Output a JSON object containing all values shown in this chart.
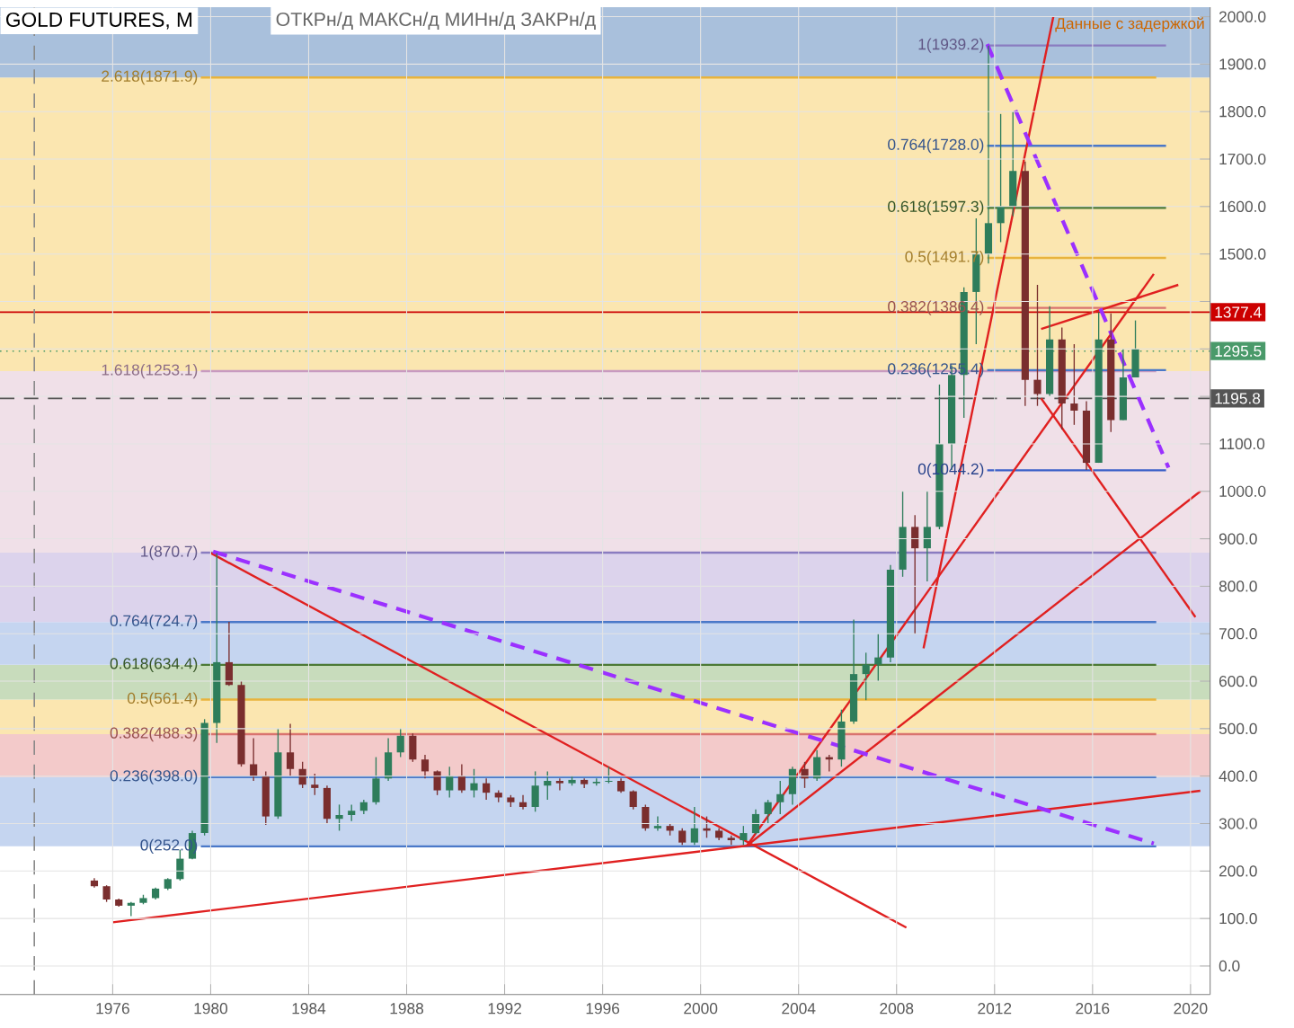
{
  "chart_data": {
    "type": "candlestick",
    "title": "GOLD FUTURES, M",
    "subtitle": "ОТКРн/д МАКСн/д МИНн/д ЗАКРн/д",
    "annotations": [
      "Данные с задержкой"
    ],
    "x": [
      1975.25,
      1975.75,
      1976.25,
      1976.75,
      1977.25,
      1977.75,
      1978.25,
      1978.75,
      1979.25,
      1979.75,
      1980.25,
      1980.75,
      1981.25,
      1981.75,
      1982.25,
      1982.75,
      1983.25,
      1983.75,
      1984.25,
      1984.75,
      1985.25,
      1985.75,
      1986.25,
      1986.75,
      1987.25,
      1987.75,
      1988.25,
      1988.75,
      1989.25,
      1989.75,
      1990.25,
      1990.75,
      1991.25,
      1991.75,
      1992.25,
      1992.75,
      1993.25,
      1993.75,
      1994.25,
      1994.75,
      1995.25,
      1995.75,
      1996.25,
      1996.75,
      1997.25,
      1997.75,
      1998.25,
      1998.75,
      1999.25,
      1999.75,
      2000.25,
      2000.75,
      2001.25,
      2001.75,
      2002.25,
      2002.75,
      2003.25,
      2003.75,
      2004.25,
      2004.75,
      2005.25,
      2005.75,
      2006.25,
      2006.75,
      2007.25,
      2007.75,
      2008.25,
      2008.75,
      2009.25,
      2009.75,
      2010.25,
      2010.75,
      2011.25,
      2011.75,
      2012.25,
      2012.75,
      2013.25,
      2013.75,
      2014.25,
      2014.75,
      2015.25,
      2015.75,
      2016.25,
      2016.75,
      2017.25,
      2017.75
    ],
    "ohlc": [
      [
        180,
        185,
        165,
        168
      ],
      [
        168,
        170,
        135,
        140
      ],
      [
        140,
        142,
        125,
        127
      ],
      [
        127,
        135,
        105,
        133
      ],
      [
        133,
        150,
        130,
        143
      ],
      [
        143,
        165,
        140,
        163
      ],
      [
        163,
        185,
        160,
        183
      ],
      [
        183,
        245,
        180,
        226
      ],
      [
        226,
        285,
        225,
        280
      ],
      [
        280,
        520,
        275,
        512
      ],
      [
        512,
        870,
        470,
        640
      ],
      [
        640,
        725,
        590,
        592
      ],
      [
        592,
        600,
        420,
        425
      ],
      [
        425,
        480,
        390,
        400
      ],
      [
        400,
        410,
        297,
        315
      ],
      [
        315,
        500,
        310,
        450
      ],
      [
        450,
        510,
        400,
        415
      ],
      [
        415,
        430,
        375,
        382
      ],
      [
        382,
        405,
        360,
        375
      ],
      [
        375,
        380,
        300,
        310
      ],
      [
        310,
        340,
        285,
        318
      ],
      [
        318,
        340,
        305,
        327
      ],
      [
        327,
        350,
        320,
        345
      ],
      [
        345,
        440,
        340,
        395
      ],
      [
        395,
        480,
        390,
        450
      ],
      [
        450,
        500,
        440,
        485
      ],
      [
        485,
        490,
        430,
        435
      ],
      [
        435,
        445,
        395,
        410
      ],
      [
        410,
        412,
        360,
        370
      ],
      [
        370,
        420,
        355,
        400
      ],
      [
        400,
        425,
        365,
        370
      ],
      [
        370,
        415,
        355,
        385
      ],
      [
        385,
        395,
        350,
        365
      ],
      [
        365,
        370,
        345,
        355
      ],
      [
        355,
        360,
        335,
        345
      ],
      [
        345,
        360,
        330,
        335
      ],
      [
        335,
        410,
        325,
        380
      ],
      [
        380,
        410,
        350,
        390
      ],
      [
        390,
        395,
        370,
        385
      ],
      [
        385,
        400,
        380,
        392
      ],
      [
        392,
        395,
        375,
        383
      ],
      [
        385,
        395,
        380,
        388
      ],
      [
        388,
        420,
        385,
        390
      ],
      [
        390,
        395,
        365,
        368
      ],
      [
        368,
        370,
        330,
        335
      ],
      [
        335,
        340,
        285,
        290
      ],
      [
        290,
        315,
        285,
        295
      ],
      [
        295,
        300,
        275,
        285
      ],
      [
        285,
        290,
        255,
        260
      ],
      [
        260,
        335,
        255,
        290
      ],
      [
        290,
        315,
        270,
        285
      ],
      [
        285,
        290,
        265,
        270
      ],
      [
        270,
        275,
        255,
        265
      ],
      [
        265,
        295,
        255,
        280
      ],
      [
        280,
        330,
        278,
        320
      ],
      [
        320,
        350,
        300,
        345
      ],
      [
        345,
        390,
        320,
        362
      ],
      [
        362,
        420,
        340,
        415
      ],
      [
        415,
        430,
        375,
        395
      ],
      [
        395,
        455,
        390,
        440
      ],
      [
        440,
        445,
        410,
        435
      ],
      [
        435,
        540,
        420,
        515
      ],
      [
        515,
        730,
        510,
        615
      ],
      [
        615,
        660,
        560,
        635
      ],
      [
        635,
        700,
        600,
        650
      ],
      [
        650,
        845,
        640,
        835
      ],
      [
        835,
        1000,
        820,
        925
      ],
      [
        925,
        950,
        700,
        880
      ],
      [
        880,
        1000,
        810,
        925
      ],
      [
        925,
        1225,
        920,
        1100
      ],
      [
        1100,
        1265,
        1045,
        1245
      ],
      [
        1245,
        1430,
        1155,
        1420
      ],
      [
        1420,
        1575,
        1310,
        1500
      ],
      [
        1500,
        1939,
        1480,
        1565
      ],
      [
        1565,
        1795,
        1525,
        1600
      ],
      [
        1600,
        1800,
        1580,
        1675
      ],
      [
        1675,
        1695,
        1180,
        1235
      ],
      [
        1235,
        1435,
        1180,
        1205
      ],
      [
        1205,
        1390,
        1200,
        1320
      ],
      [
        1320,
        1345,
        1130,
        1185
      ],
      [
        1185,
        1310,
        1140,
        1170
      ],
      [
        1170,
        1190,
        1045,
        1060
      ],
      [
        1060,
        1377,
        1060,
        1320
      ],
      [
        1320,
        1375,
        1125,
        1150
      ],
      [
        1150,
        1300,
        1150,
        1240
      ],
      [
        1240,
        1360,
        1240,
        1300
      ]
    ],
    "series": [
      {
        "type": "line",
        "name": "0(252.0)",
        "color": "#4a78c8",
        "x": [
          1979.6,
          2018.6
        ],
        "values": [
          252.0,
          252.0
        ]
      },
      {
        "type": "line",
        "name": "0.236(398.0)",
        "color": "#4a78c8",
        "x": [
          1979.6,
          2018.6
        ],
        "values": [
          398.0,
          398.0
        ]
      },
      {
        "type": "line",
        "name": "0.382(488.3)",
        "color": "#d9736f",
        "x": [
          1979.6,
          2018.6
        ],
        "values": [
          488.3,
          488.3
        ]
      },
      {
        "type": "line",
        "name": "0.5(561.4)",
        "color": "#e8b33d",
        "x": [
          1979.6,
          2018.6
        ],
        "values": [
          561.4,
          561.4
        ]
      },
      {
        "type": "line",
        "name": "0.618(634.4)",
        "color": "#4c7a36",
        "x": [
          1979.6,
          2018.6
        ],
        "values": [
          634.4,
          634.4
        ]
      },
      {
        "type": "line",
        "name": "0.764(724.7)",
        "color": "#4a78c8",
        "x": [
          1979.6,
          2018.6
        ],
        "values": [
          724.7,
          724.7
        ]
      },
      {
        "type": "line",
        "name": "1(870.7)",
        "color": "#8a7cc0",
        "x": [
          1979.6,
          2018.6
        ],
        "values": [
          870.7,
          870.7
        ]
      },
      {
        "type": "line",
        "name": "1.618(1253.1)",
        "color": "#c89ac0",
        "x": [
          1979.6,
          2018.6
        ],
        "values": [
          1253.1,
          1253.1
        ]
      },
      {
        "type": "line",
        "name": "2.618(1871.9)",
        "color": "#e8b33d",
        "x": [
          1979.6,
          2018.6
        ],
        "values": [
          1871.9,
          1871.9
        ]
      },
      {
        "type": "line",
        "name": "0(1044.2)",
        "color": "#3a5fc8",
        "x": [
          2011.7,
          2019.0
        ],
        "values": [
          1044.2,
          1044.2
        ]
      },
      {
        "type": "line",
        "name": "0.236(1255.4)",
        "color": "#4a78c8",
        "x": [
          2011.7,
          2019.0
        ],
        "values": [
          1255.4,
          1255.4
        ]
      },
      {
        "type": "line",
        "name": "0.382(1386.4)",
        "color": "#d9736f",
        "x": [
          2011.7,
          2019.0
        ],
        "values": [
          1386.4,
          1386.4
        ]
      },
      {
        "type": "line",
        "name": "0.5(1491.7)",
        "color": "#e8b33d",
        "x": [
          2011.7,
          2019.0
        ],
        "values": [
          1491.7,
          1491.7
        ]
      },
      {
        "type": "line",
        "name": "0.618(1597.3)",
        "color": "#4c7a36",
        "x": [
          2011.7,
          2019.0
        ],
        "values": [
          1597.3,
          1597.3
        ]
      },
      {
        "type": "line",
        "name": "0.764(1728.0)",
        "color": "#4a78c8",
        "x": [
          2011.7,
          2019.0
        ],
        "values": [
          1728.0,
          1728.0
        ]
      },
      {
        "type": "line",
        "name": "1(1939.2)",
        "color": "#8a7cc0",
        "x": [
          2011.7,
          2019.0
        ],
        "values": [
          1939.2,
          1939.2
        ]
      },
      {
        "type": "line",
        "color": "#e02020",
        "x": [
          1976.0,
          2020.4
        ],
        "values": [
          92,
          369
        ]
      },
      {
        "type": "line",
        "color": "#e02020",
        "x": [
          2001.9,
          2020.4
        ],
        "values": [
          254,
          1000
        ]
      },
      {
        "type": "line",
        "color": "#e02020",
        "x": [
          1980.0,
          2008.4
        ],
        "values": [
          870,
          81
        ]
      },
      {
        "type": "line",
        "color": "#e02020",
        "x": [
          2001.9,
          2018.5
        ],
        "values": [
          254,
          1458
        ]
      },
      {
        "type": "line",
        "color": "#e02020",
        "x": [
          2009.1,
          2014.4
        ],
        "values": [
          669,
          2000
        ]
      },
      {
        "type": "line",
        "color": "#e02020",
        "x": [
          2013.9,
          2020.2
        ],
        "values": [
          1196,
          735
        ]
      },
      {
        "type": "line",
        "color": "#e02020",
        "x": [
          2013.9,
          2019.5
        ],
        "values": [
          1342,
          1435
        ]
      },
      {
        "type": "line",
        "color": "#9b30ff",
        "line_style": "dashed",
        "x": [
          1980.1,
          2018.5
        ],
        "values": [
          873,
          258
        ]
      },
      {
        "type": "line",
        "color": "#9b30ff",
        "line_style": "dashed",
        "x": [
          2011.7,
          2019.1
        ],
        "values": [
          1942,
          1050
        ]
      }
    ],
    "bands": [
      {
        "axis": "y",
        "from": 252.0,
        "to": 398.0,
        "color": "#c5d5f0"
      },
      {
        "axis": "y",
        "from": 398.0,
        "to": 488.3,
        "color": "#f3caca"
      },
      {
        "axis": "y",
        "from": 488.3,
        "to": 561.4,
        "color": "#fbe6b0"
      },
      {
        "axis": "y",
        "from": 561.4,
        "to": 634.4,
        "color": "#c8dcbc"
      },
      {
        "axis": "y",
        "from": 634.4,
        "to": 724.7,
        "color": "#c5d5f0"
      },
      {
        "axis": "y",
        "from": 724.7,
        "to": 870.7,
        "color": "#dcd3ec"
      },
      {
        "axis": "y",
        "from": 870.7,
        "to": 1253.1,
        "color": "#f0e0e8"
      },
      {
        "axis": "y",
        "from": 1253.1,
        "to": 1871.9,
        "color": "#fbe6b0"
      },
      {
        "axis": "y",
        "from": 1871.9,
        "to": 2020,
        "color": "#a9c0dc"
      }
    ],
    "ref_lines": [
      {
        "axis": "y",
        "value": 1377.4,
        "label": "1377.4",
        "color": "#cc0000"
      },
      {
        "axis": "y",
        "value": 1295.5,
        "label": "1295.5",
        "color": "#4a9a6a",
        "line_style": "dotted"
      },
      {
        "axis": "y",
        "value": 1195.8,
        "label": "1195.8",
        "color": "#555555",
        "line_style": "dashed"
      },
      {
        "axis": "x",
        "value": 1972.8,
        "color": "#888888",
        "line_style": "dashed"
      }
    ],
    "xlim": [
      1971.4,
      2020.8
    ],
    "ylim": [
      -60,
      2020
    ],
    "xticks": [
      1976,
      1980,
      1984,
      1988,
      1992,
      1996,
      2000,
      2004,
      2008,
      2012,
      2016,
      2020
    ],
    "yticks": [
      {
        "value": 0,
        "label": "0.0"
      },
      {
        "value": 100,
        "label": "100.0"
      },
      {
        "value": 200,
        "label": "200.0"
      },
      {
        "value": 300,
        "label": "300.0"
      },
      {
        "value": 400,
        "label": "400.0"
      },
      {
        "value": 500,
        "label": "500.0"
      },
      {
        "value": 600,
        "label": "600.0"
      },
      {
        "value": 700,
        "label": "700.0"
      },
      {
        "value": 800,
        "label": "800.0"
      },
      {
        "value": 900,
        "label": "900.0"
      },
      {
        "value": 1000,
        "label": "1000.0"
      },
      {
        "value": 1100,
        "label": "1100.0"
      },
      {
        "value": 1200,
        "label": null
      },
      {
        "value": 1300,
        "label": null
      },
      {
        "value": 1400,
        "label": null
      },
      {
        "value": 1500,
        "label": "1500.0"
      },
      {
        "value": 1600,
        "label": "1600.0"
      },
      {
        "value": 1700,
        "label": "1700.0"
      },
      {
        "value": 1800,
        "label": "1800.0"
      },
      {
        "value": 1900,
        "label": "1900.0"
      },
      {
        "value": 2000,
        "label": "2000.0"
      }
    ],
    "grid": true
  }
}
